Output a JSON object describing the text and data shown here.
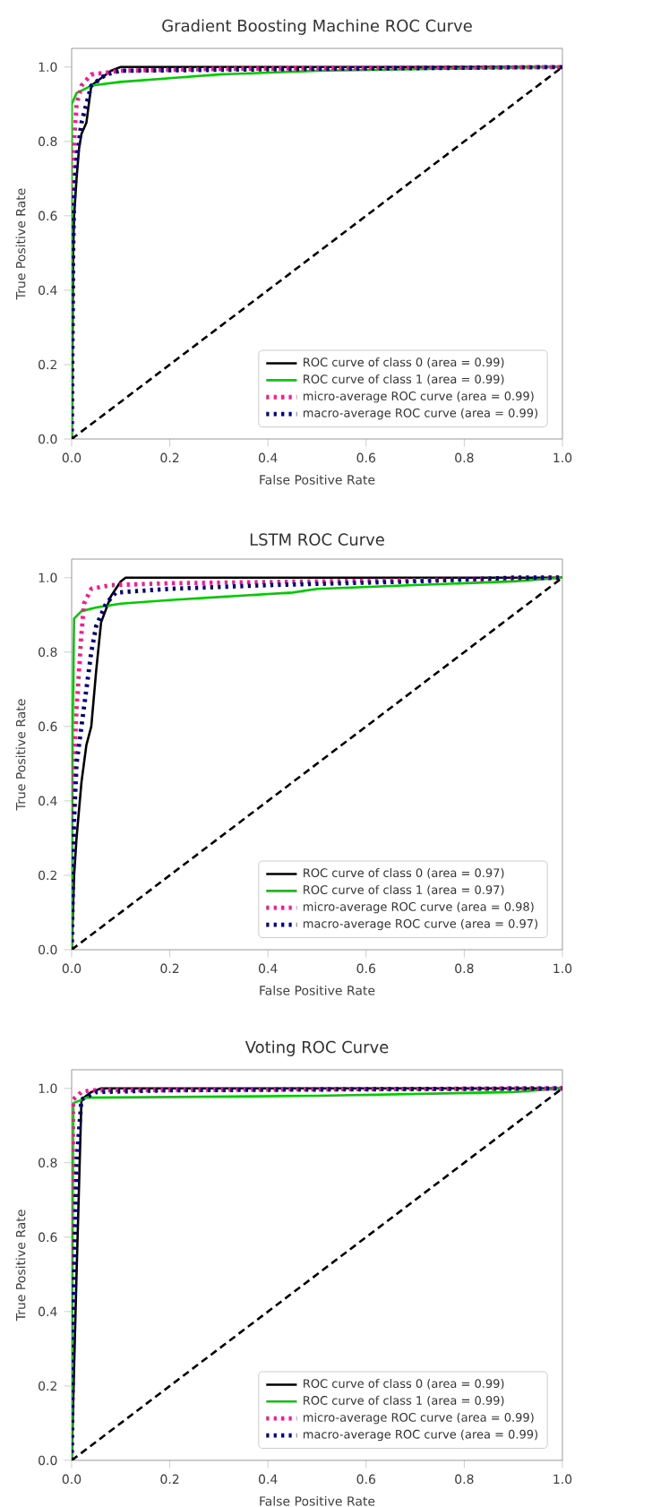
{
  "chart_data": [
    {
      "type": "line",
      "title": "Gradient Boosting Machine ROC Curve",
      "xlabel": "False Positive Rate",
      "ylabel": "True Positive Rate",
      "xlim": [
        0,
        1
      ],
      "ylim": [
        0,
        1.05
      ],
      "xticks": [
        {
          "value": 0,
          "label": "0.0"
        },
        {
          "value": 0.2,
          "label": "0.2"
        },
        {
          "value": 0.4,
          "label": "0.4"
        },
        {
          "value": 0.6,
          "label": "0.6"
        },
        {
          "value": 0.8,
          "label": "0.8"
        },
        {
          "value": 1,
          "label": "1.0"
        }
      ],
      "yticks": [
        {
          "value": 0,
          "label": "0.0"
        },
        {
          "value": 0.2,
          "label": "0.2"
        },
        {
          "value": 0.4,
          "label": "0.4"
        },
        {
          "value": 0.6,
          "label": "0.6"
        },
        {
          "value": 0.8,
          "label": "0.8"
        },
        {
          "value": 1,
          "label": "1.0"
        }
      ],
      "legend": "bottom right",
      "grid": false,
      "marker": "none",
      "series": [
        {
          "name": "ROC curve of class 0 (area = 0.99)",
          "color": "#000000",
          "line_style": "solid",
          "x": [
            0,
            0.003,
            0.005,
            0.01,
            0.015,
            0.02,
            0.03,
            0.035,
            0.04,
            0.06,
            0.08,
            0.1,
            1
          ],
          "values": [
            0,
            0.5,
            0.6,
            0.7,
            0.78,
            0.82,
            0.85,
            0.9,
            0.95,
            0.97,
            0.99,
            1,
            1
          ]
        },
        {
          "name": "ROC curve of class 1 (area = 0.99)",
          "color": "#00cc00",
          "line_style": "solid",
          "x": [
            0,
            0,
            0.01,
            0.04,
            0.1,
            0.2,
            0.3,
            0.5,
            1
          ],
          "values": [
            0,
            0.9,
            0.93,
            0.95,
            0.96,
            0.97,
            0.98,
            0.99,
            1
          ]
        },
        {
          "name": "micro-average ROC curve (area = 0.99)",
          "color": "#ff1493",
          "line_style": "dotted",
          "x": [
            0,
            0.003,
            0.005,
            0.01,
            0.02,
            0.04,
            0.1,
            0.3,
            1
          ],
          "values": [
            0,
            0.6,
            0.8,
            0.9,
            0.95,
            0.98,
            0.99,
            0.995,
            1
          ]
        },
        {
          "name": "macro-average ROC curve (area = 0.99)",
          "color": "#000080",
          "line_style": "dotted",
          "x": [
            0,
            0.003,
            0.005,
            0.01,
            0.02,
            0.03,
            0.04,
            0.07,
            0.1,
            0.5,
            1
          ],
          "values": [
            0,
            0.5,
            0.65,
            0.75,
            0.85,
            0.9,
            0.95,
            0.98,
            0.99,
            0.995,
            1
          ]
        },
        {
          "color": "#000000",
          "line_style": "dashed",
          "x": [
            0,
            1
          ],
          "values": [
            0,
            1
          ]
        }
      ]
    },
    {
      "type": "line",
      "title": "LSTM ROC Curve",
      "xlabel": "False Positive Rate",
      "ylabel": "True Positive Rate",
      "xlim": [
        0,
        1
      ],
      "ylim": [
        0,
        1.05
      ],
      "xticks": [
        {
          "value": 0,
          "label": "0.0"
        },
        {
          "value": 0.2,
          "label": "0.2"
        },
        {
          "value": 0.4,
          "label": "0.4"
        },
        {
          "value": 0.6,
          "label": "0.6"
        },
        {
          "value": 0.8,
          "label": "0.8"
        },
        {
          "value": 1,
          "label": "1.0"
        }
      ],
      "yticks": [
        {
          "value": 0,
          "label": "0.0"
        },
        {
          "value": 0.2,
          "label": "0.2"
        },
        {
          "value": 0.4,
          "label": "0.4"
        },
        {
          "value": 0.6,
          "label": "0.6"
        },
        {
          "value": 0.8,
          "label": "0.8"
        },
        {
          "value": 1,
          "label": "1.0"
        }
      ],
      "legend": "bottom right",
      "grid": false,
      "marker": "none",
      "series": [
        {
          "name": "ROC curve of class 0 (area = 0.97)",
          "color": "#000000",
          "line_style": "solid",
          "x": [
            0,
            0.005,
            0.01,
            0.02,
            0.025,
            0.03,
            0.04,
            0.05,
            0.06,
            0.08,
            0.1,
            0.11,
            1
          ],
          "values": [
            0,
            0.2,
            0.3,
            0.45,
            0.5,
            0.55,
            0.6,
            0.75,
            0.88,
            0.95,
            0.99,
            1,
            1
          ]
        },
        {
          "name": "ROC curve of class 1 (area = 0.97)",
          "color": "#00cc00",
          "line_style": "solid",
          "x": [
            0,
            0.002,
            0.005,
            0.02,
            0.05,
            0.1,
            0.2,
            0.45,
            0.5,
            0.7,
            0.9,
            1
          ],
          "values": [
            0,
            0.6,
            0.89,
            0.91,
            0.92,
            0.93,
            0.94,
            0.96,
            0.97,
            0.98,
            0.99,
            1
          ]
        },
        {
          "name": "micro-average ROC curve (area = 0.98)",
          "color": "#ff1493",
          "line_style": "dotted",
          "x": [
            0,
            0.003,
            0.005,
            0.01,
            0.015,
            0.02,
            0.025,
            0.04,
            0.08,
            0.2,
            0.5,
            0.8,
            1
          ],
          "values": [
            0,
            0.3,
            0.5,
            0.65,
            0.75,
            0.85,
            0.93,
            0.97,
            0.98,
            0.985,
            0.99,
            0.995,
            1
          ]
        },
        {
          "name": "macro-average ROC curve (area = 0.97)",
          "color": "#000080",
          "line_style": "dotted",
          "x": [
            0,
            0.003,
            0.005,
            0.01,
            0.02,
            0.03,
            0.04,
            0.05,
            0.07,
            0.09,
            0.2,
            0.4,
            0.7,
            0.9,
            1
          ],
          "values": [
            0,
            0.2,
            0.35,
            0.5,
            0.6,
            0.7,
            0.8,
            0.87,
            0.93,
            0.96,
            0.97,
            0.98,
            0.99,
            1,
            1
          ]
        },
        {
          "color": "#000000",
          "line_style": "dashed",
          "x": [
            0,
            1
          ],
          "values": [
            0,
            1
          ]
        }
      ]
    },
    {
      "type": "line",
      "title": "Voting ROC Curve",
      "xlabel": "False Positive Rate",
      "ylabel": "True Positive Rate",
      "xlim": [
        0,
        1
      ],
      "ylim": [
        0,
        1.05
      ],
      "xticks": [
        {
          "value": 0,
          "label": "0.0"
        },
        {
          "value": 0.2,
          "label": "0.2"
        },
        {
          "value": 0.4,
          "label": "0.4"
        },
        {
          "value": 0.6,
          "label": "0.6"
        },
        {
          "value": 0.8,
          "label": "0.8"
        },
        {
          "value": 1,
          "label": "1.0"
        }
      ],
      "yticks": [
        {
          "value": 0,
          "label": "0.0"
        },
        {
          "value": 0.2,
          "label": "0.2"
        },
        {
          "value": 0.4,
          "label": "0.4"
        },
        {
          "value": 0.6,
          "label": "0.6"
        },
        {
          "value": 0.8,
          "label": "0.8"
        },
        {
          "value": 1,
          "label": "1.0"
        }
      ],
      "legend": "bottom right",
      "grid": false,
      "marker": "none",
      "series": [
        {
          "name": "ROC curve of class 0 (area = 0.99)",
          "color": "#000000",
          "line_style": "solid",
          "x": [
            0,
            0.01,
            0.02,
            0.04,
            0.06,
            1
          ],
          "values": [
            0,
            0.5,
            0.97,
            0.99,
            1,
            1
          ]
        },
        {
          "name": "ROC curve of class 1 (area = 0.99)",
          "color": "#00cc00",
          "line_style": "solid",
          "x": [
            0,
            0.003,
            0.03,
            0.5,
            0.9,
            1
          ],
          "values": [
            0,
            0.96,
            0.975,
            0.98,
            0.99,
            1
          ]
        },
        {
          "name": "micro-average ROC curve (area = 0.99)",
          "color": "#ff1493",
          "line_style": "dotted",
          "x": [
            0,
            0.003,
            0.02,
            0.04,
            1
          ],
          "values": [
            0,
            0.97,
            0.99,
            0.995,
            1
          ]
        },
        {
          "name": "macro-average ROC curve (area = 0.99)",
          "color": "#000080",
          "line_style": "dotted",
          "x": [
            0,
            0.005,
            0.01,
            0.02,
            0.05,
            0.2,
            1
          ],
          "values": [
            0,
            0.5,
            0.8,
            0.97,
            0.99,
            0.995,
            1
          ]
        },
        {
          "color": "#000000",
          "line_style": "dashed",
          "x": [
            0,
            1
          ],
          "values": [
            0,
            1
          ]
        }
      ]
    }
  ]
}
